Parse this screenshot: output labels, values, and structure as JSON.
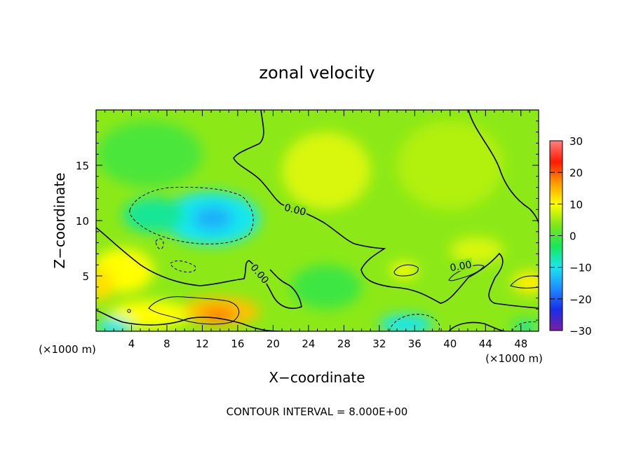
{
  "chart_data": {
    "type": "heatmap",
    "title": "zonal velocity",
    "xlabel": "X−coordinate",
    "ylabel": "Z−coordinate",
    "x_unit": "(×1000 m)",
    "y_unit": "(×1000 m)",
    "footer": "CONTOUR INTERVAL = 8.000E+00",
    "xlim": [
      0,
      50
    ],
    "ylim": [
      0,
      20
    ],
    "xticks": [
      4,
      8,
      12,
      16,
      20,
      24,
      28,
      32,
      36,
      40,
      44,
      48
    ],
    "yticks": [
      5,
      10,
      15
    ],
    "colorbar": {
      "min": -30,
      "max": 30,
      "ticks": [
        30,
        20,
        10,
        0,
        -10,
        -20,
        -30
      ],
      "tick_labels": [
        "30",
        "20",
        "10",
        "0",
        "−10",
        "−20",
        "−30"
      ],
      "colors": [
        "#7a1fa0",
        "#1a2ee6",
        "#1f8cff",
        "#19e6f0",
        "#19e65a",
        "#7fe619",
        "#ffff00",
        "#ff9900",
        "#ff1a00",
        "#ff8080"
      ]
    },
    "contour_labels": [
      {
        "text": "0.00",
        "x": 22.5,
        "z": 11.0,
        "rotate": 14
      },
      {
        "text": "0.00",
        "x": 18.5,
        "z": 5.2,
        "rotate": 50
      },
      {
        "text": "0.00",
        "x": 41.2,
        "z": 5.9,
        "rotate": -10
      }
    ],
    "background_value": 4,
    "blobs": [
      {
        "x": 13,
        "z": 10.2,
        "rx": 5.5,
        "rz": 2.4,
        "v": -10
      },
      {
        "x": 13.2,
        "z": 10.2,
        "rx": 2.2,
        "rz": 1.1,
        "v": -14
      },
      {
        "x": 6.5,
        "z": 10.5,
        "rx": 3.5,
        "rz": 1.6,
        "v": -6
      },
      {
        "x": 14,
        "z": 1.8,
        "rx": 4.5,
        "rz": 1.3,
        "v": 14
      },
      {
        "x": 13.8,
        "z": 1.5,
        "rx": 2.0,
        "rz": 0.7,
        "v": 18
      },
      {
        "x": 6,
        "z": 1.5,
        "rx": 4.5,
        "rz": 1.3,
        "v": 10
      },
      {
        "x": 3,
        "z": 5.5,
        "rx": 3.5,
        "rz": 2.0,
        "v": 10
      },
      {
        "x": 0.5,
        "z": 4.2,
        "rx": 1.5,
        "rz": 1.5,
        "v": 12
      },
      {
        "x": 2,
        "z": 0.4,
        "rx": 2.0,
        "rz": 0.8,
        "v": -10
      },
      {
        "x": 35,
        "z": 0.6,
        "rx": 3.0,
        "rz": 0.9,
        "v": -10
      },
      {
        "x": 48.5,
        "z": 0.4,
        "rx": 1.5,
        "rz": 0.6,
        "v": -6
      },
      {
        "x": 34.8,
        "z": 5.5,
        "rx": 1.5,
        "rz": 0.7,
        "v": 10
      },
      {
        "x": 49,
        "z": 4.4,
        "rx": 2.0,
        "rz": 1.0,
        "v": 11
      },
      {
        "x": 43,
        "z": 7.3,
        "rx": 3.0,
        "rz": 1.2,
        "v": 8
      },
      {
        "x": 26,
        "z": 14.5,
        "rx": 5.0,
        "rz": 3.5,
        "v": 8
      },
      {
        "x": 40,
        "z": 15,
        "rx": 6.0,
        "rz": 4.0,
        "v": 6
      },
      {
        "x": 6,
        "z": 16,
        "rx": 6.0,
        "rz": 3.0,
        "v": 0
      },
      {
        "x": 26,
        "z": 4,
        "rx": 4.0,
        "rz": 2.0,
        "v": -1
      }
    ]
  }
}
